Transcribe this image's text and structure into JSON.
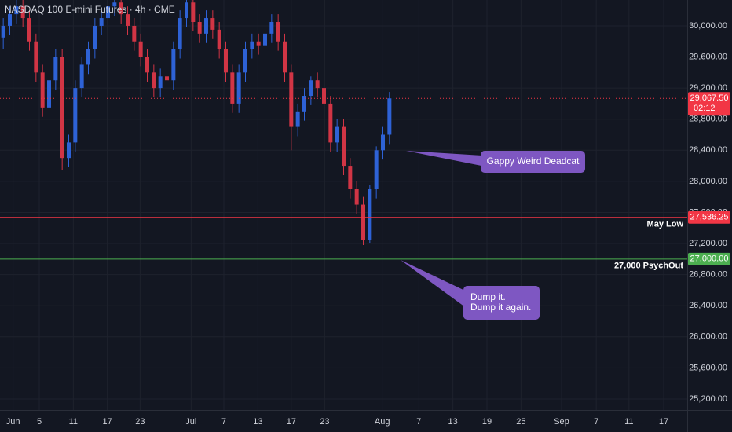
{
  "chart_data": {
    "type": "candlestick",
    "title": "NASDAQ 100 E-mini Futures · 4h · CME",
    "up_color": "#2e62d6",
    "down_color": "#d13545",
    "open": [
      29850,
      30000,
      30150,
      30250,
      30100,
      29800,
      29400,
      28950,
      29300,
      29600,
      28300,
      28500,
      29200,
      29500,
      29700,
      30000,
      30100,
      30250,
      30300,
      30150,
      30000,
      29800,
      29600,
      29400,
      29200,
      29350,
      29300,
      29700,
      30100,
      30300,
      30050,
      29900,
      30100,
      29950,
      29700,
      29400,
      29000,
      29400,
      29700,
      29800,
      29750,
      29900,
      30050,
      29800,
      29400,
      28700,
      28900,
      29100,
      29300,
      29200,
      29000,
      28500,
      28700,
      28200,
      27900,
      27700,
      27250,
      27900,
      28400,
      28600
    ],
    "high": [
      30100,
      30250,
      30350,
      30350,
      30200,
      29900,
      29500,
      29400,
      29700,
      29700,
      28600,
      29300,
      29600,
      29800,
      30100,
      30200,
      30350,
      30400,
      30400,
      30250,
      30100,
      29900,
      29700,
      29500,
      29450,
      29450,
      29800,
      30200,
      30400,
      30400,
      30150,
      30200,
      30200,
      30050,
      29800,
      29500,
      29500,
      29800,
      29900,
      29900,
      30000,
      30150,
      30150,
      29900,
      29500,
      29000,
      29200,
      29350,
      29400,
      29300,
      29100,
      28800,
      28800,
      28300,
      28000,
      27800,
      27950,
      28450,
      28700,
      29150
    ],
    "low": [
      29700,
      29880,
      30030,
      29980,
      29680,
      29280,
      28830,
      28850,
      29180,
      28150,
      28180,
      28380,
      29080,
      29380,
      29580,
      29880,
      29980,
      30130,
      30030,
      29880,
      29680,
      29480,
      29280,
      29080,
      29080,
      29180,
      29180,
      29580,
      29980,
      29930,
      29780,
      29780,
      29830,
      29580,
      29280,
      28880,
      28880,
      29280,
      29580,
      29630,
      29630,
      29780,
      29680,
      29280,
      28400,
      28580,
      28780,
      28980,
      29080,
      28880,
      28380,
      28380,
      28080,
      27780,
      27580,
      27180,
      27200,
      27780,
      28280,
      28480
    ],
    "close": [
      30000,
      30150,
      30250,
      30100,
      29800,
      29400,
      28950,
      29300,
      29600,
      28300,
      28500,
      29200,
      29500,
      29700,
      30000,
      30100,
      30250,
      30300,
      30150,
      30000,
      29800,
      29600,
      29400,
      29200,
      29350,
      29300,
      29700,
      30100,
      30300,
      30050,
      29900,
      30100,
      29950,
      29700,
      29400,
      29000,
      29400,
      29700,
      29800,
      29750,
      29900,
      30050,
      29800,
      29400,
      28700,
      28900,
      29100,
      29300,
      29200,
      29000,
      28500,
      28700,
      28200,
      27900,
      27700,
      27250,
      27900,
      28400,
      28600,
      29067.5
    ],
    "xlim": [
      0,
      105
    ],
    "xticks": [
      {
        "value": 2.0,
        "label": "Jun"
      },
      {
        "value": 6.0,
        "label": "5"
      },
      {
        "value": 11.2,
        "label": "11"
      },
      {
        "value": 16.4,
        "label": "17"
      },
      {
        "value": 21.4,
        "label": "23"
      },
      {
        "value": 29.2,
        "label": "Jul"
      },
      {
        "value": 34.2,
        "label": "7"
      },
      {
        "value": 39.4,
        "label": "13"
      },
      {
        "value": 44.5,
        "label": "17"
      },
      {
        "value": 49.6,
        "label": "23"
      },
      {
        "value": 58.4,
        "label": "Aug"
      },
      {
        "value": 64,
        "label": "7"
      },
      {
        "value": 69.2,
        "label": "13"
      },
      {
        "value": 74.4,
        "label": "19"
      },
      {
        "value": 79.6,
        "label": "25"
      },
      {
        "value": 85.8,
        "label": "Sep"
      },
      {
        "value": 91.1,
        "label": "7"
      },
      {
        "value": 96.1,
        "label": "11"
      },
      {
        "value": 101.4,
        "label": "17"
      }
    ],
    "ylim": [
      25058,
      30333
    ],
    "yticks": [
      {
        "value": 25200,
        "label": "25,200.00"
      },
      {
        "value": 25600,
        "label": "25,600.00"
      },
      {
        "value": 26000,
        "label": "26,000.00"
      },
      {
        "value": 26400,
        "label": "26,400.00"
      },
      {
        "value": 26800,
        "label": "26,800.00"
      },
      {
        "value": 27200,
        "label": "27,200.00"
      },
      {
        "value": 27600,
        "label": "27,600.00"
      },
      {
        "value": 28000,
        "label": "28,000.00"
      },
      {
        "value": 28400,
        "label": "28,400.00"
      },
      {
        "value": 28800,
        "label": "28,800.00"
      },
      {
        "value": 29200,
        "label": "29,200.00"
      },
      {
        "value": 29600,
        "label": "29,600.00"
      },
      {
        "value": 30000,
        "label": "30,000.00"
      }
    ],
    "grid": true,
    "lines": [
      {
        "name": "May Low",
        "value": 27536.25,
        "value_label": "27,536.25",
        "color": "#f23645"
      },
      {
        "name": "27,000 PsychOut",
        "value": 27000,
        "value_label": "27,000.00",
        "color": "#4caf50"
      }
    ],
    "last_price": {
      "value": 29067.5,
      "label": "29,067.50",
      "countdown": "02:12",
      "color": "#f23645"
    },
    "annotations": [
      {
        "lines": [
          "Gappy Weird Deadcat"
        ]
      },
      {
        "lines": [
          "Dump it.",
          "Dump it again."
        ]
      }
    ]
  }
}
